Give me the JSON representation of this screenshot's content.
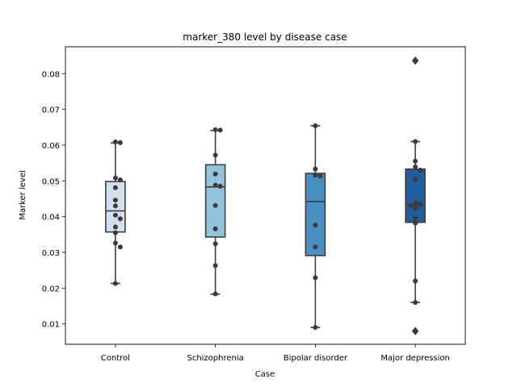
{
  "chart_data": {
    "type": "box",
    "title": "marker_380 level by disease case",
    "xlabel": "Case",
    "ylabel": "Marker level",
    "ylim": [
      0.0043,
      0.0875
    ],
    "yticks": [
      "0.01",
      "0.02",
      "0.03",
      "0.04",
      "0.05",
      "0.06",
      "0.07",
      "0.08"
    ],
    "ytick_values": [
      0.01,
      0.02,
      0.03,
      0.04,
      0.05,
      0.06,
      0.07,
      0.08
    ],
    "grid": false,
    "legend": "none",
    "categories": [
      "Control",
      "Schizophrenia",
      "Bipolar disorder",
      "Major depression"
    ],
    "colors": [
      "#d2dfee",
      "#93c4de",
      "#4a8fc1",
      "#1f5d9e"
    ],
    "boxes": [
      {
        "name": "Control",
        "whisker_low": 0.0213,
        "q1": 0.0357,
        "median": 0.0416,
        "q3": 0.0498,
        "whisker_high": 0.0606,
        "fliers": []
      },
      {
        "name": "Schizophrenia",
        "whisker_low": 0.0183,
        "q1": 0.0343,
        "median": 0.0483,
        "q3": 0.0545,
        "whisker_high": 0.0641,
        "fliers": []
      },
      {
        "name": "Bipolar disorder",
        "whisker_low": 0.009,
        "q1": 0.0291,
        "median": 0.0442,
        "q3": 0.0521,
        "whisker_high": 0.0654,
        "fliers": []
      },
      {
        "name": "Major depression",
        "whisker_low": 0.016,
        "q1": 0.0384,
        "median": 0.0434,
        "q3": 0.0533,
        "whisker_high": 0.061,
        "fliers": [
          0.0836,
          0.008
        ]
      }
    ],
    "points": [
      [
        0.0609,
        0.0607,
        0.0508,
        0.0503,
        0.0481,
        0.0446,
        0.043,
        0.0404,
        0.0394,
        0.0371,
        0.0355,
        0.0326,
        0.0315,
        0.0213
      ],
      [
        0.0643,
        0.0642,
        0.0572,
        0.0519,
        0.0488,
        0.0485,
        0.0431,
        0.0366,
        0.0324,
        0.0263,
        0.0184
      ],
      [
        0.0654,
        0.0533,
        0.0516,
        0.0513,
        0.0376,
        0.0315,
        0.0229,
        0.009
      ],
      [
        0.0836,
        0.061,
        0.0555,
        0.0539,
        0.053,
        0.0505,
        0.0437,
        0.0434,
        0.0431,
        0.0424,
        0.0396,
        0.0382,
        0.022,
        0.016,
        0.008
      ]
    ]
  }
}
